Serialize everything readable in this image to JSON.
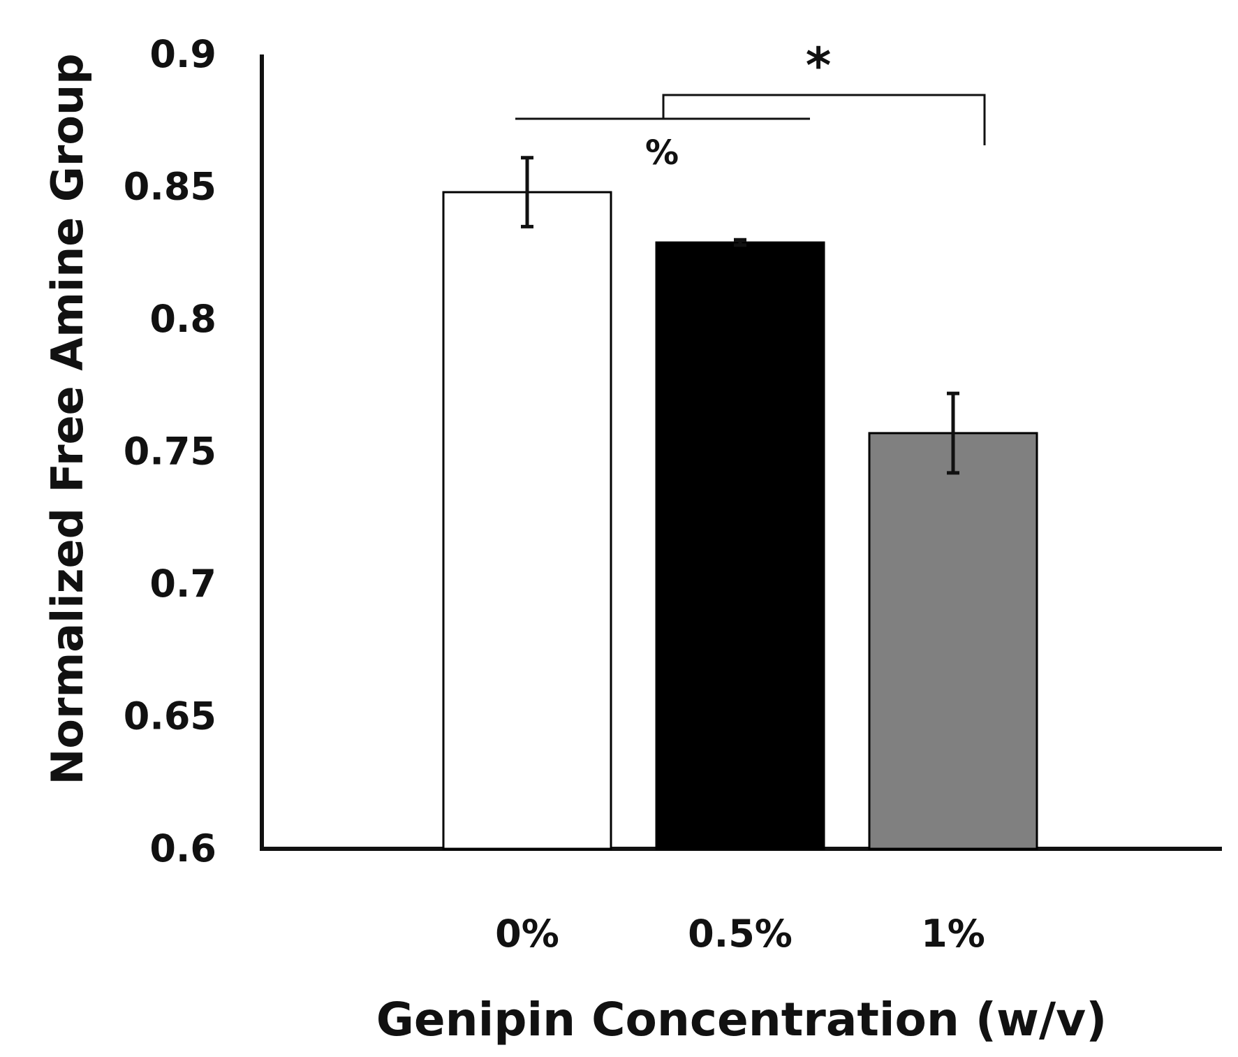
{
  "chart_data": {
    "type": "bar",
    "title": "",
    "xlabel": "Genipin Concentration (w/v)",
    "ylabel": "Normalized Free Amine Group",
    "categories": [
      "0%",
      "0.5%",
      "1%"
    ],
    "values": [
      0.848,
      0.829,
      0.757
    ],
    "errors": [
      0.013,
      0.001,
      0.015
    ],
    "bar_colors": [
      "#ffffff",
      "#000000",
      "#808080"
    ],
    "ylim": [
      0.6,
      0.9
    ],
    "yticks": [
      "0.6",
      "0.65",
      "0.7",
      "0.75",
      "0.8",
      "0.85",
      "0.9"
    ],
    "grid": false,
    "annotations": [
      {
        "label": "%",
        "note": "0% vs 0.5%"
      },
      {
        "label": "*",
        "note": "0% and 0.5% vs 1%"
      }
    ]
  }
}
